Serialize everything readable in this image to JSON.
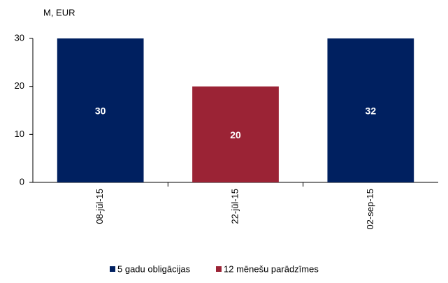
{
  "chart_data": {
    "type": "bar",
    "y_label": "M, EUR",
    "categories": [
      "08-jūl-15",
      "22-jūl-15",
      "02-sep-15"
    ],
    "series": [
      {
        "name": "5 gadu obligācijas",
        "color": "#002060",
        "values": [
          30,
          null,
          32
        ]
      },
      {
        "name": "12 mēnešu parādzīmes",
        "color": "#9b2335",
        "values": [
          null,
          20,
          null
        ]
      }
    ],
    "ylim": [
      0,
      30
    ],
    "yticks": [
      0,
      10,
      20,
      30
    ],
    "grid": false,
    "legend": "bottom"
  }
}
